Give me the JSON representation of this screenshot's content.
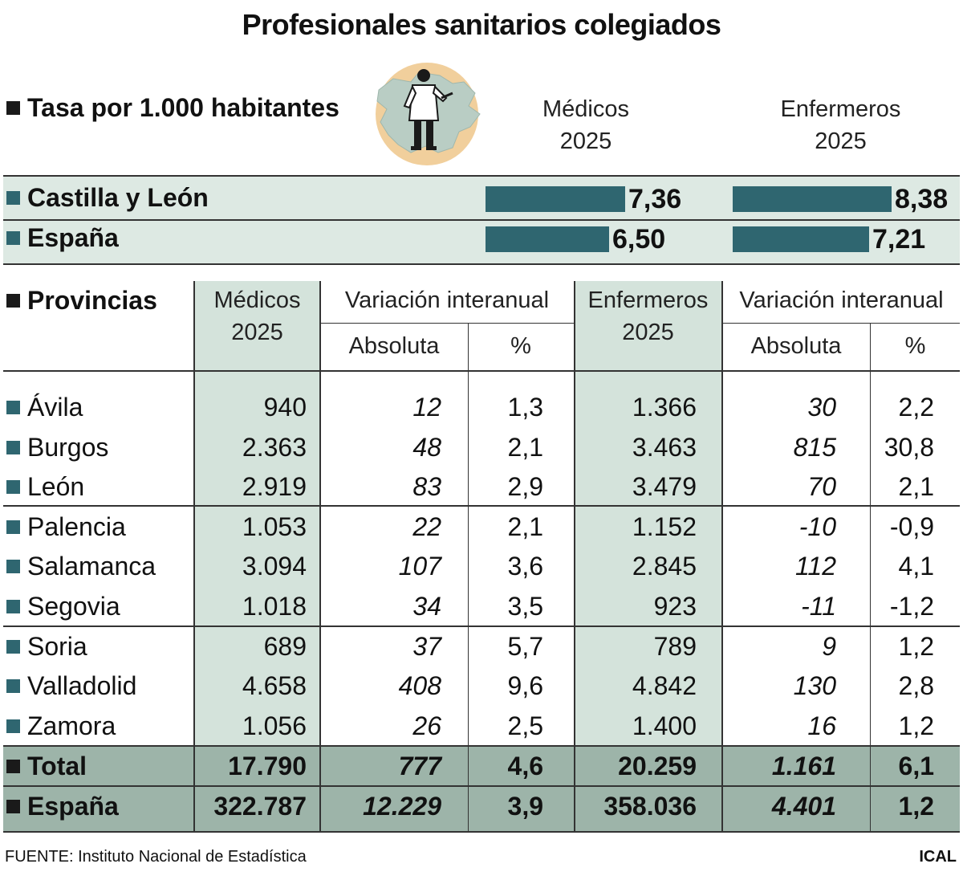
{
  "title": "Profesionales sanitarios colegiados",
  "rate_section": {
    "heading": "Tasa por 1.000 habitantes",
    "col_medicos": "Médicos",
    "col_medicos_year": "2025",
    "col_enfermeros": "Enfermeros",
    "col_enfermeros_year": "2025",
    "rows": [
      {
        "label": "Castilla y León",
        "medicos": "7,36",
        "enfermeros": "8,38"
      },
      {
        "label": "España",
        "medicos": "6,50",
        "enfermeros": "7,21"
      }
    ]
  },
  "table": {
    "heading": "Provincias",
    "h_medicos": "Médicos",
    "h_medicos_year": "2025",
    "h_var1": "Variación interanual",
    "h_abs1": "Absoluta",
    "h_pct1": "%",
    "h_enfermeros": "Enfermeros",
    "h_enfermeros_year": "2025",
    "h_var2": "Variación interanual",
    "h_abs2": "Absoluta",
    "h_pct2": "%",
    "rows": [
      {
        "label": "Ávila",
        "med": "940",
        "med_abs": "12",
        "med_pct": "1,3",
        "enf": "1.366",
        "enf_abs": "30",
        "enf_pct": "2,2"
      },
      {
        "label": "Burgos",
        "med": "2.363",
        "med_abs": "48",
        "med_pct": "2,1",
        "enf": "3.463",
        "enf_abs": "815",
        "enf_pct": "30,8"
      },
      {
        "label": "León",
        "med": "2.919",
        "med_abs": "83",
        "med_pct": "2,9",
        "enf": "3.479",
        "enf_abs": "70",
        "enf_pct": "2,1"
      },
      {
        "label": "Palencia",
        "med": "1.053",
        "med_abs": "22",
        "med_pct": "2,1",
        "enf": "1.152",
        "enf_abs": "-10",
        "enf_pct": "-0,9"
      },
      {
        "label": "Salamanca",
        "med": "3.094",
        "med_abs": "107",
        "med_pct": "3,6",
        "enf": "2.845",
        "enf_abs": "112",
        "enf_pct": "4,1"
      },
      {
        "label": "Segovia",
        "med": "1.018",
        "med_abs": "34",
        "med_pct": "3,5",
        "enf": "923",
        "enf_abs": "-11",
        "enf_pct": "-1,2"
      },
      {
        "label": "Soria",
        "med": "689",
        "med_abs": "37",
        "med_pct": "5,7",
        "enf": "789",
        "enf_abs": "9",
        "enf_pct": "1,2"
      },
      {
        "label": "Valladolid",
        "med": "4.658",
        "med_abs": "408",
        "med_pct": "9,6",
        "enf": "4.842",
        "enf_abs": "130",
        "enf_pct": "2,8"
      },
      {
        "label": "Zamora",
        "med": "1.056",
        "med_abs": "26",
        "med_pct": "2,5",
        "enf": "1.400",
        "enf_abs": "16",
        "enf_pct": "1,2"
      }
    ],
    "summary": [
      {
        "label": "Total",
        "med": "17.790",
        "med_abs": "777",
        "med_pct": "4,6",
        "enf": "20.259",
        "enf_abs": "1.161",
        "enf_pct": "6,1"
      },
      {
        "label": "España",
        "med": "322.787",
        "med_abs": "12.229",
        "med_pct": "3,9",
        "enf": "358.036",
        "enf_abs": "4.401",
        "enf_pct": "1,2"
      }
    ]
  },
  "footer": {
    "source": "FUENTE: Instituto Nacional de Estadística",
    "brand": "ICAL"
  },
  "colors": {
    "bar": "#2f6670",
    "band_light": "#dde9e3",
    "column_band": "#d4e3db",
    "summary_band": "#9db4a9",
    "map_fill": "#b9cdc4",
    "circle_fill": "#f1cf9c"
  },
  "icons": {
    "illustration": "doctor-on-map-icon"
  },
  "chart_data": {
    "type": "bar",
    "categories": [
      "Castilla y León",
      "España"
    ],
    "series": [
      {
        "name": "Médicos",
        "values": [
          7.36,
          6.5
        ]
      },
      {
        "name": "Enfermeros",
        "values": [
          8.38,
          7.21
        ]
      }
    ],
    "title": "Tasa por 1.000 habitantes"
  }
}
